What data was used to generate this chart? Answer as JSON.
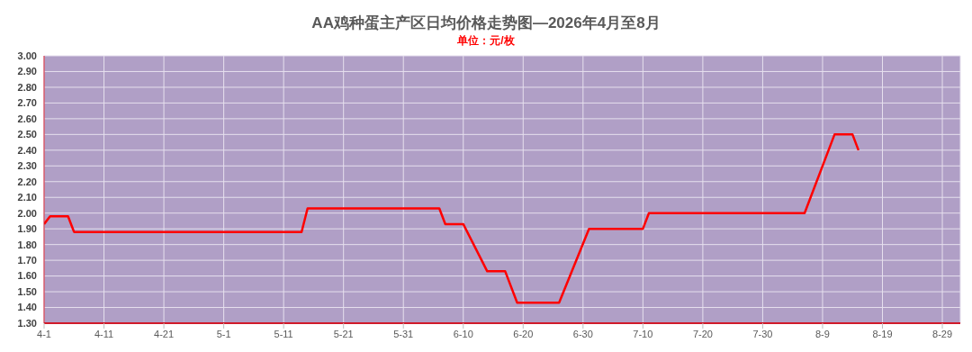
{
  "chart_data": {
    "type": "line",
    "title": "AA鸡种蛋主产区日均价格走势图—2026年4月至8月",
    "subtitle": "单位：元/枚",
    "x": [
      "2026-04-01",
      "2026-04-02",
      "2026-04-05",
      "2026-04-06",
      "2026-05-14",
      "2026-05-15",
      "2026-06-06",
      "2026-06-07",
      "2026-06-10",
      "2026-06-12",
      "2026-06-14",
      "2026-06-17",
      "2026-06-19",
      "2026-06-26",
      "2026-07-01",
      "2026-07-10",
      "2026-07-11",
      "2026-08-06",
      "2026-08-11",
      "2026-08-14",
      "2026-08-15"
    ],
    "series": [
      {
        "color": "#ff0000",
        "values": [
          1.93,
          1.98,
          1.98,
          1.88,
          1.88,
          2.03,
          2.03,
          1.93,
          1.93,
          1.78,
          1.63,
          1.63,
          1.43,
          1.43,
          1.9,
          1.9,
          2.0,
          2.0,
          2.5,
          2.5,
          2.4
        ]
      }
    ],
    "xlim": [
      "2026-04-01",
      "2026-09-01"
    ],
    "xticks": [
      {
        "value": "2026-04-01",
        "label": "4-1"
      },
      {
        "value": "2026-04-11",
        "label": "4-11"
      },
      {
        "value": "2026-04-21",
        "label": "4-21"
      },
      {
        "value": "2026-05-01",
        "label": "5-1"
      },
      {
        "value": "2026-05-11",
        "label": "5-11"
      },
      {
        "value": "2026-05-21",
        "label": "5-21"
      },
      {
        "value": "2026-05-31",
        "label": "5-31"
      },
      {
        "value": "2026-06-10",
        "label": "6-10"
      },
      {
        "value": "2026-06-20",
        "label": "6-20"
      },
      {
        "value": "2026-06-30",
        "label": "6-30"
      },
      {
        "value": "2026-07-10",
        "label": "7-10"
      },
      {
        "value": "2026-07-20",
        "label": "7-20"
      },
      {
        "value": "2026-07-30",
        "label": "7-30"
      },
      {
        "value": "2026-08-09",
        "label": "8-9"
      },
      {
        "value": "2026-08-19",
        "label": "8-19"
      },
      {
        "value": "2026-08-29",
        "label": "8-29"
      }
    ],
    "ylim": [
      1.3,
      3.0
    ],
    "yticks": [
      {
        "value": 1.3,
        "label": "1.30"
      },
      {
        "value": 1.4,
        "label": "1.40"
      },
      {
        "value": 1.5,
        "label": "1.50"
      },
      {
        "value": 1.6,
        "label": "1.60"
      },
      {
        "value": 1.7,
        "label": "1.70"
      },
      {
        "value": 1.8,
        "label": "1.80"
      },
      {
        "value": 1.9,
        "label": "1.90"
      },
      {
        "value": 2.0,
        "label": "2.00"
      },
      {
        "value": 2.1,
        "label": "2.10"
      },
      {
        "value": 2.2,
        "label": "2.20"
      },
      {
        "value": 2.3,
        "label": "2.30"
      },
      {
        "value": 2.4,
        "label": "2.40"
      },
      {
        "value": 2.5,
        "label": "2.50"
      },
      {
        "value": 2.6,
        "label": "2.60"
      },
      {
        "value": 2.7,
        "label": "2.70"
      },
      {
        "value": 2.8,
        "label": "2.80"
      },
      {
        "value": 2.9,
        "label": "2.90"
      },
      {
        "value": 3.0,
        "label": "3.00"
      }
    ],
    "grid": true,
    "marker": "none",
    "line_style": "solid"
  }
}
